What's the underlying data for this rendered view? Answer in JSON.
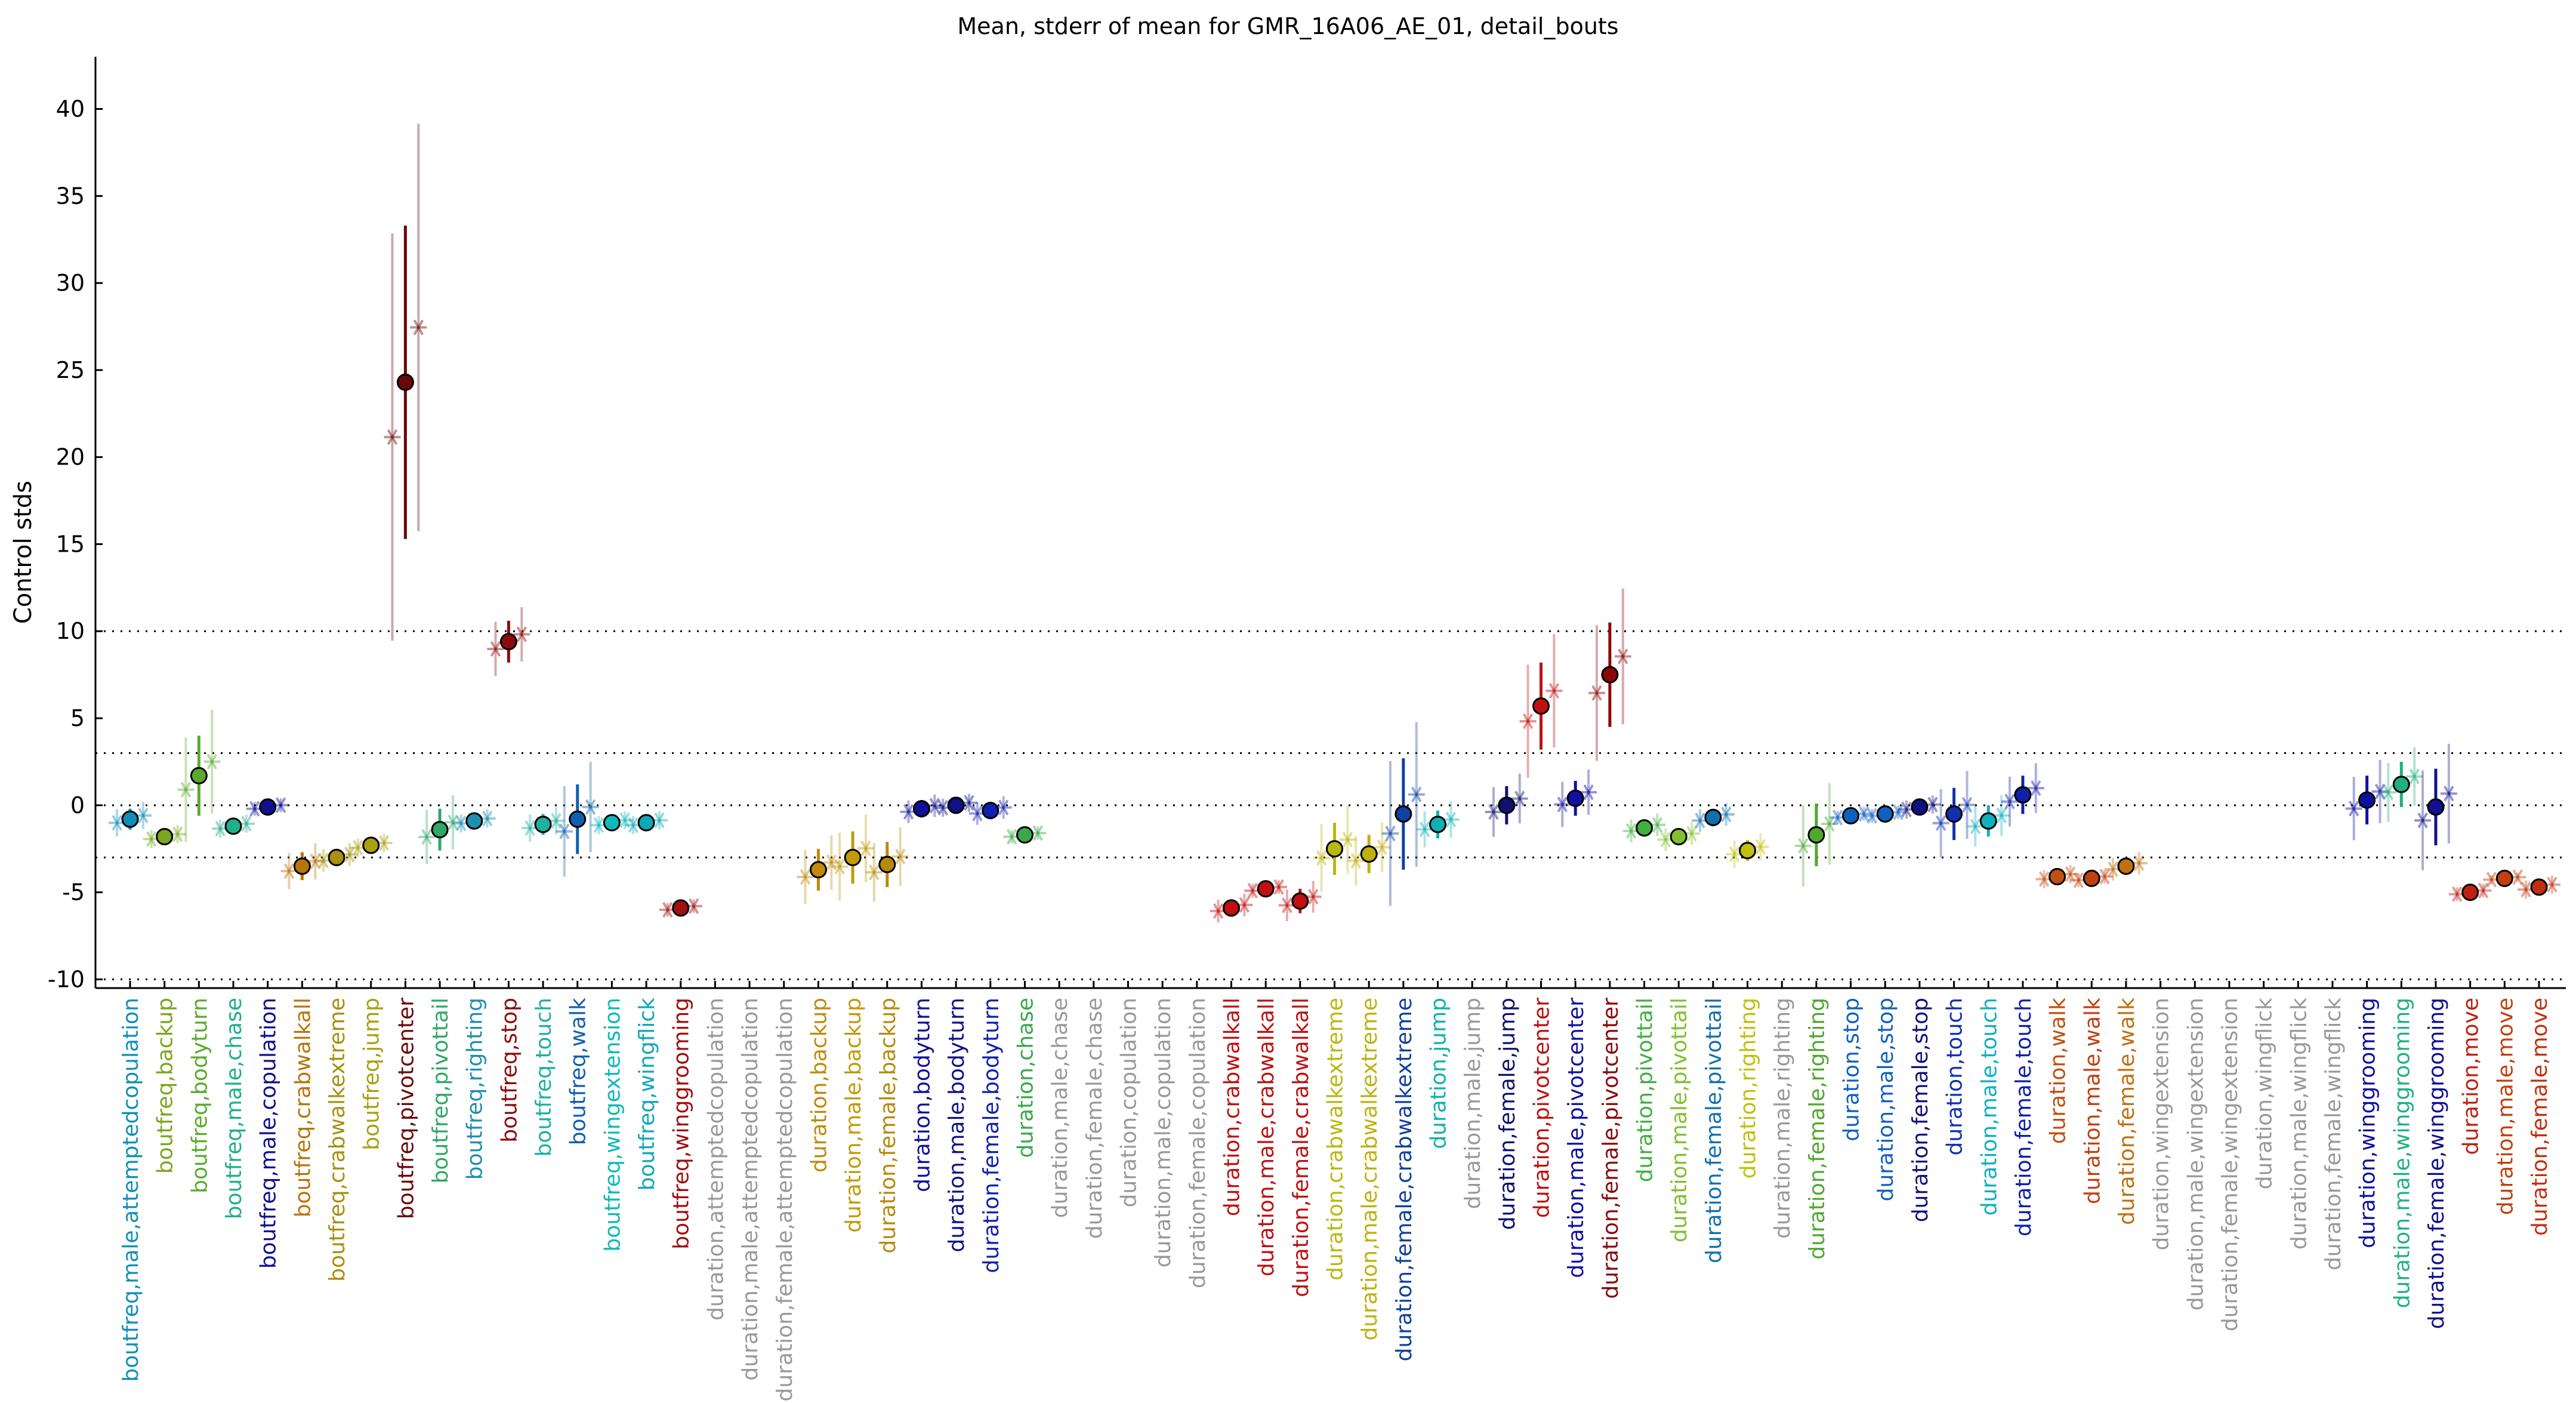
{
  "chart_data": {
    "type": "scatter",
    "title": "Mean, stderr of mean for GMR_16A06_AE_01, detail_bouts",
    "xlabel": "",
    "ylabel": "Control stds",
    "ylim": [
      -10.5,
      43
    ],
    "yticks": [
      -10,
      -5,
      0,
      5,
      10,
      15,
      20,
      25,
      30,
      35,
      40
    ],
    "reference_lines": [
      10,
      3,
      0,
      -3,
      -10
    ],
    "grid": false,
    "legend": "none",
    "categories": [
      "boutfreq,male,attemptedcopulation",
      "boutfreq,backup",
      "boutfreq,bodyturn",
      "boutfreq,male,chase",
      "boutfreq,male,copulation",
      "boutfreq,crabwalkall",
      "boutfreq,crabwalkextreme",
      "boutfreq,jump",
      "boutfreq,pivotcenter",
      "boutfreq,pivottail",
      "boutfreq,righting",
      "boutfreq,stop",
      "boutfreq,touch",
      "boutfreq,walk",
      "boutfreq,wingextension",
      "boutfreq,wingflick",
      "boutfreq,winggrooming",
      "duration,attemptedcopulation",
      "duration,male,attemptedcopulation",
      "duration,female,attemptedcopulation",
      "duration,backup",
      "duration,male,backup",
      "duration,female,backup",
      "duration,bodyturn",
      "duration,male,bodyturn",
      "duration,female,bodyturn",
      "duration,chase",
      "duration,male,chase",
      "duration,female,chase",
      "duration,copulation",
      "duration,male,copulation",
      "duration,female,copulation",
      "duration,crabwalkall",
      "duration,male,crabwalkall",
      "duration,female,crabwalkall",
      "duration,crabwalkextreme",
      "duration,male,crabwalkextreme",
      "duration,female,crabwalkextreme",
      "duration,jump",
      "duration,male,jump",
      "duration,female,jump",
      "duration,pivotcenter",
      "duration,male,pivotcenter",
      "duration,female,pivotcenter",
      "duration,pivottail",
      "duration,male,pivottail",
      "duration,female,pivottail",
      "duration,righting",
      "duration,male,righting",
      "duration,female,righting",
      "duration,stop",
      "duration,male,stop",
      "duration,female,stop",
      "duration,touch",
      "duration,male,touch",
      "duration,female,touch",
      "duration,walk",
      "duration,male,walk",
      "duration,female,walk",
      "duration,wingextension",
      "duration,male,wingextension",
      "duration,female,wingextension",
      "duration,wingflick",
      "duration,male,wingflick",
      "duration,female,wingflick",
      "duration,winggrooming",
      "duration,male,winggrooming",
      "duration,female,winggrooming",
      "duration,move",
      "duration,male,move",
      "duration,female,move"
    ],
    "label_colors": [
      "#0f8fb8",
      "#7ba61d",
      "#5aab2d",
      "#1fb08a",
      "#101090",
      "#b8740a",
      "#a89010",
      "#a8a010",
      "#6a0808",
      "#2fa868",
      "#1f8fb0",
      "#8a0c0c",
      "#1fb0a0",
      "#1060b0",
      "#10b8b8",
      "#10a8b8",
      "#a01010",
      "#999999",
      "#999999",
      "#999999",
      "#c08a0a",
      "#c09a0a",
      "#b88a0a",
      "#10109a",
      "#101088",
      "#1020b0",
      "#3aa84a",
      "#999999",
      "#999999",
      "#999999",
      "#999999",
      "#999999",
      "#c01010",
      "#c01010",
      "#c01010",
      "#b8b810",
      "#c0b010",
      "#1040a0",
      "#10b0b0",
      "#999999",
      "#101070",
      "#c01010",
      "#1010a0",
      "#8a0808",
      "#40b040",
      "#80c030",
      "#1070b0",
      "#c0c010",
      "#999999",
      "#50a830",
      "#1060c0",
      "#1060c0",
      "#101080",
      "#1030b0",
      "#10b0c0",
      "#1020a8",
      "#c05010",
      "#c04010",
      "#c07010",
      "#999999",
      "#999999",
      "#999999",
      "#999999",
      "#999999",
      "#999999",
      "#1010a0",
      "#20b080",
      "#101090",
      "#c02010",
      "#c04010",
      "#c03010"
    ],
    "series": [
      {
        "name": "",
        "values": [
          -0.8,
          -1.8,
          1.7,
          -1.2,
          -0.1,
          -3.5,
          -3.0,
          -2.3,
          24.3,
          -1.4,
          -0.9,
          9.4,
          -1.1,
          -0.8,
          -1.0,
          -1.0,
          -5.9,
          null,
          null,
          null,
          -3.7,
          -3.0,
          -3.4,
          -0.2,
          0.0,
          -0.3,
          -1.7,
          null,
          null,
          null,
          null,
          null,
          -5.9,
          -4.8,
          -5.5,
          -2.5,
          -2.8,
          -0.5,
          -1.1,
          null,
          0.0,
          5.7,
          0.4,
          7.5,
          -1.3,
          -1.8,
          -0.7,
          -2.6,
          null,
          -1.7,
          -0.6,
          -0.5,
          -0.1,
          -0.5,
          -0.9,
          0.6,
          -4.1,
          -4.2,
          -3.5,
          null,
          null,
          null,
          null,
          null,
          null,
          0.3,
          1.2,
          -0.1,
          -5.0,
          -4.2,
          -4.7
        ],
        "stderr": [
          0.6,
          0.4,
          2.3,
          0.4,
          0.3,
          0.8,
          0.5,
          0.4,
          9.0,
          1.2,
          0.4,
          1.2,
          0.6,
          2.0,
          0.4,
          0.4,
          0.3,
          null,
          null,
          null,
          1.2,
          1.5,
          1.3,
          0.5,
          0.4,
          0.5,
          0.3,
          null,
          null,
          null,
          null,
          null,
          0.5,
          0.3,
          0.7,
          1.5,
          1.1,
          3.2,
          0.8,
          null,
          1.1,
          2.5,
          1.0,
          3.0,
          0.5,
          0.5,
          0.5,
          0.6,
          null,
          1.8,
          0.3,
          0.3,
          0.4,
          1.5,
          0.9,
          1.1,
          0.4,
          0.3,
          0.5,
          null,
          null,
          null,
          null,
          null,
          null,
          1.4,
          1.3,
          2.2,
          0.3,
          0.2,
          0.4
        ]
      }
    ]
  }
}
